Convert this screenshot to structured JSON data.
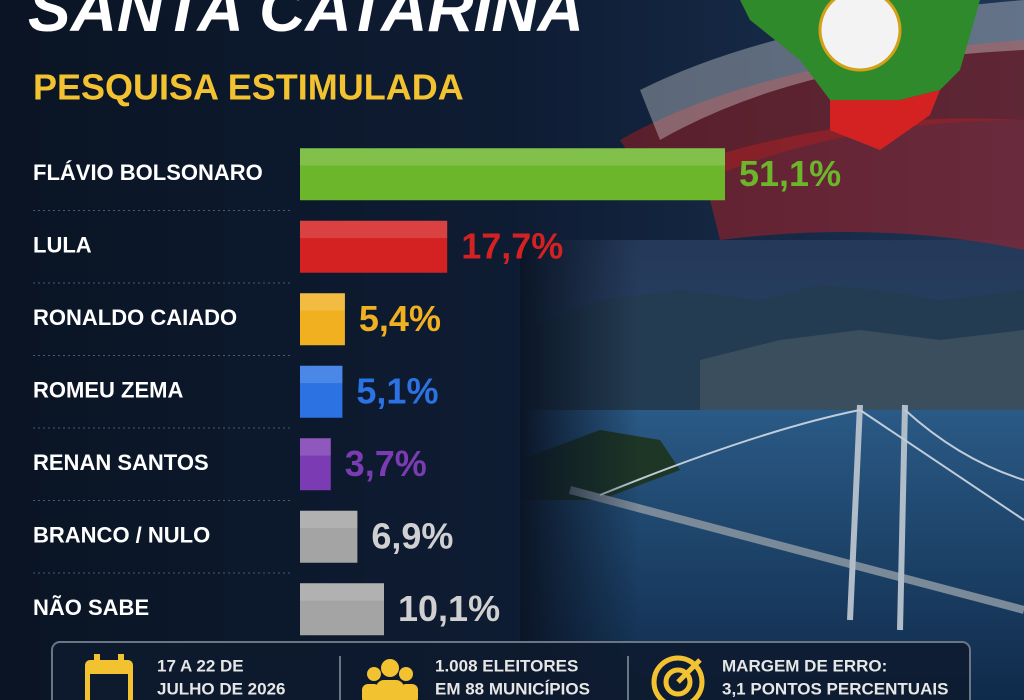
{
  "chart_data": {
    "type": "bar",
    "orientation": "horizontal",
    "title": "SANTA CATARINA",
    "subtitle": "PESQUISA ESTIMULADA",
    "categories": [
      "FLÁVIO BOLSONARO",
      "LULA",
      "RONALDO CAIADO",
      "ROMEU ZEMA",
      "RENAN SANTOS",
      "BRANCO / NULO",
      "NÃO SABE"
    ],
    "values": [
      51.1,
      17.7,
      5.4,
      5.1,
      3.7,
      6.9,
      10.1
    ],
    "value_labels": [
      "51,1%",
      "17,7%",
      "5,4%",
      "5,1%",
      "3,7%",
      "6,9%",
      "10,1%"
    ],
    "colors": [
      "#6cb62c",
      "#d42222",
      "#f0b020",
      "#2c72e2",
      "#7b3bb2",
      "#a4a4a4",
      "#a4a4a4"
    ]
  },
  "footer": [
    {
      "lines": [
        "17 A 22 DE",
        "JULHO DE 2026"
      ]
    },
    {
      "lines": [
        "1.008 ELEITORES",
        "EM 88 MUNICÍPIOS"
      ]
    },
    {
      "lines": [
        "MARGEM DE ERRO:",
        "3,1 PONTOS PERCENTUAIS"
      ]
    }
  ]
}
